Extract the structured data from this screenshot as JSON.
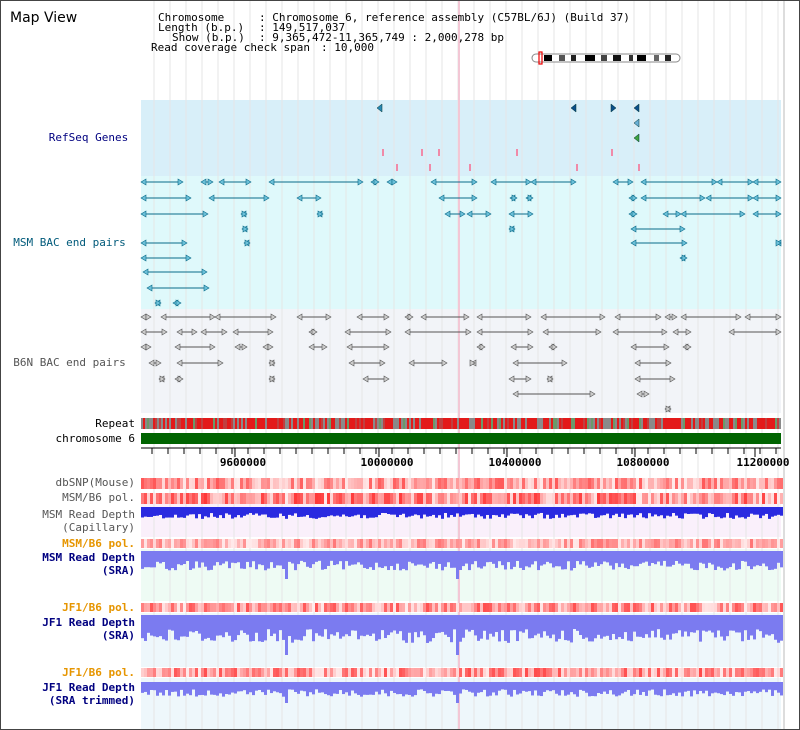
{
  "title": "Map View",
  "info": {
    "chromosome_key": "Chromosome",
    "chromosome_val": "Chromosome 6, reference assembly (C57BL/6J) (Build 37)",
    "length_key": "Length (b.p.)",
    "length_val": "149,517,037",
    "show_key": "Show (b.p.)",
    "show_val": "9,365,472-11,365,749 : 2,000,278 bp",
    "read_key": "Read coverage check span",
    "read_val": "10,000"
  },
  "tracks": {
    "refseq": "RefSeq Genes",
    "msm_bac": "MSM BAC end pairs",
    "b6n_bac": "B6N BAC end pairs",
    "repeat": "Repeat",
    "chromosome": "chromosome 6",
    "dbsnp": "dbSNP(Mouse)",
    "msm_b6_pol_1": "MSM/B6 pol.",
    "msm_depth_cap_1": "MSM Read Depth",
    "msm_depth_cap_2": "(Capillary)",
    "msm_b6_pol_2": "MSM/B6 pol.",
    "msm_depth_sra_1": "MSM Read Depth",
    "msm_depth_sra_2": "(SRA)",
    "jf1_b6_pol_1": "JF1/B6 pol.",
    "jf1_depth_sra_1": "JF1 Read Depth",
    "jf1_depth_sra_2": "(SRA)",
    "jf1_b6_pol_2": "JF1/B6 pol.",
    "jf1_depth_trim_1": "JF1 Read Depth",
    "jf1_depth_trim_2": "(SRA trimmed)"
  },
  "axis": {
    "ticks": [
      "9600000",
      "10000000",
      "10400000",
      "10800000",
      "11200000"
    ]
  },
  "colors": {
    "label_navy": "#000080",
    "label_teal": "#005a7a",
    "label_gray": "#555555",
    "label_orange": "#e69500",
    "refseq_bg": "#d8eff9",
    "msm_bg": "#dff9fb",
    "b6n_bg": "#f2f4f8",
    "chromosome_bar": "#006400",
    "depth_blue": "#2a2ae0",
    "depth_light": "#7b7bf0",
    "pol_red": "#ff2020"
  }
}
